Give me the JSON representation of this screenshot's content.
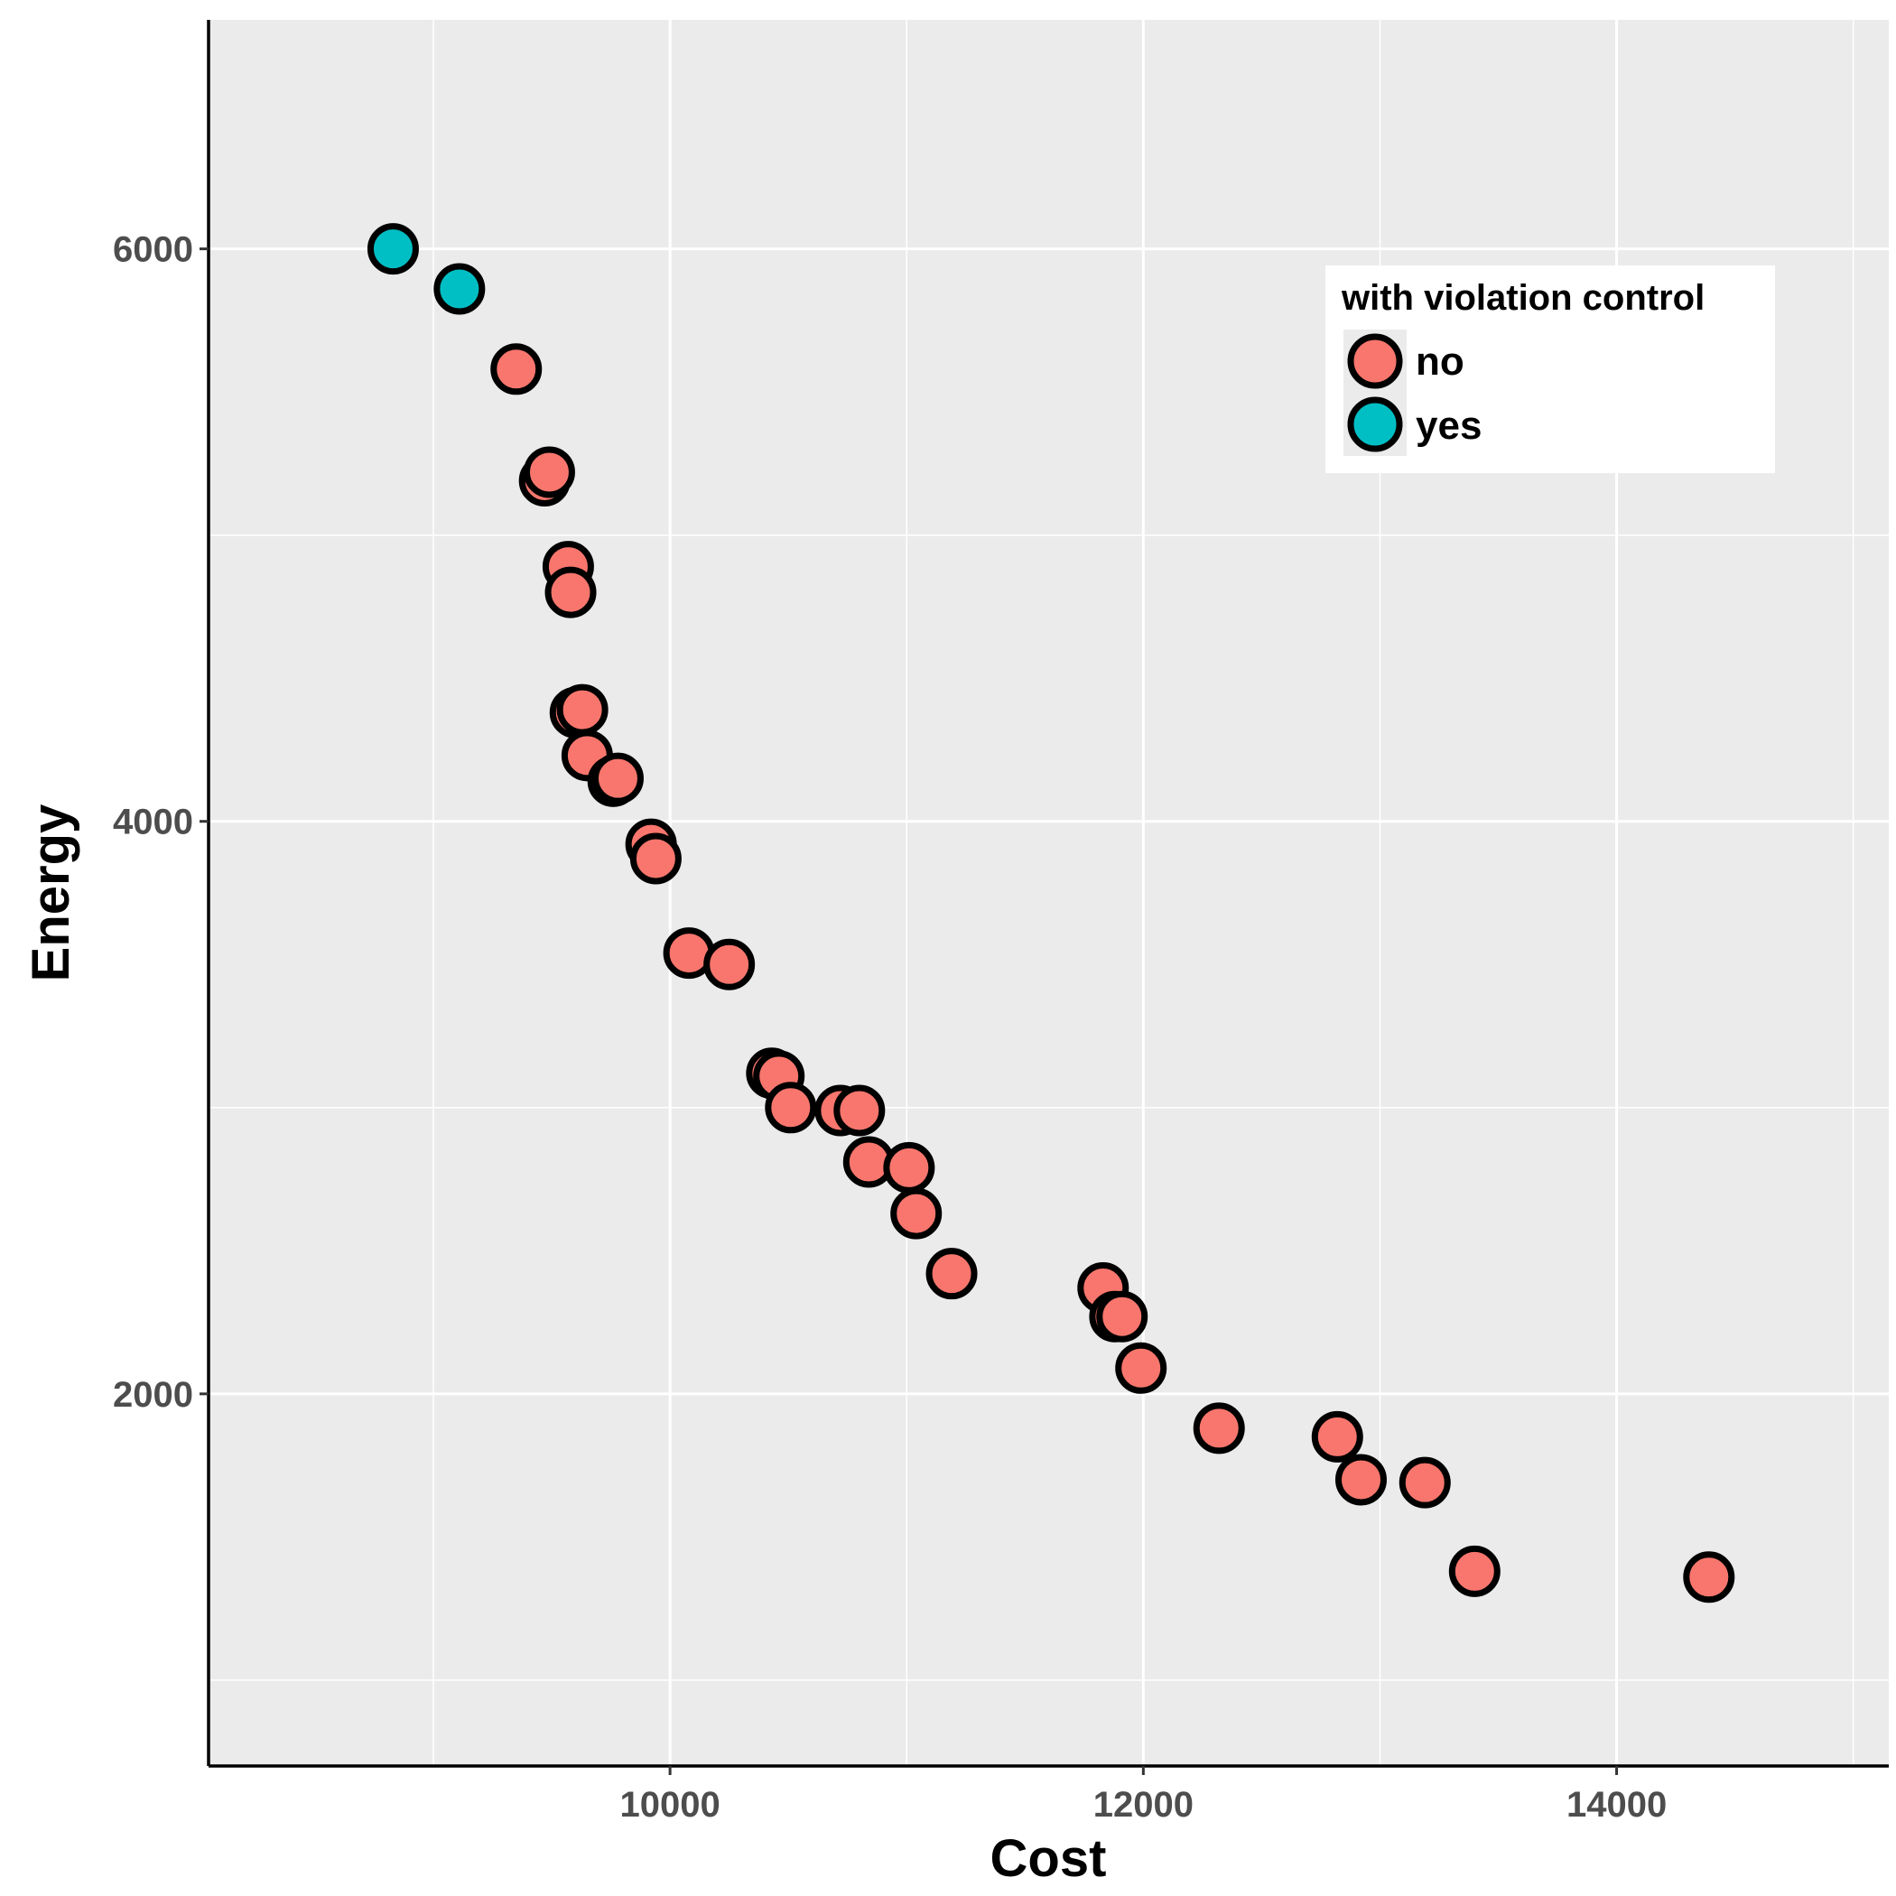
{
  "chart_data": {
    "type": "scatter",
    "xlabel": "Cost",
    "ylabel": "Energy",
    "xlim": [
      8050,
      15150
    ],
    "ylim": [
      700,
      6800
    ],
    "x_ticks": [
      10000,
      12000,
      14000
    ],
    "y_ticks": [
      2000,
      4000,
      6000
    ],
    "x_minor_gridlines": [
      9000,
      11000,
      13000,
      15000
    ],
    "y_minor_gridlines": [
      1000,
      3000,
      5000
    ],
    "grid": true,
    "legend": {
      "title": "with violation control",
      "position": "top-right",
      "entries": [
        {
          "label": "no",
          "color": "#F8766D"
        },
        {
          "label": "yes",
          "color": "#00BFC4"
        }
      ]
    },
    "series": [
      {
        "name": "no",
        "color": "#F8766D",
        "points": [
          [
            9350,
            5580
          ],
          [
            9470,
            5190
          ],
          [
            9490,
            5220
          ],
          [
            9570,
            4890
          ],
          [
            9580,
            4800
          ],
          [
            9600,
            4380
          ],
          [
            9630,
            4390
          ],
          [
            9650,
            4230
          ],
          [
            9760,
            4140
          ],
          [
            9780,
            4150
          ],
          [
            9920,
            3920
          ],
          [
            9940,
            3870
          ],
          [
            10080,
            3540
          ],
          [
            10250,
            3500
          ],
          [
            10430,
            3120
          ],
          [
            10460,
            3110
          ],
          [
            10510,
            3000
          ],
          [
            10720,
            2990
          ],
          [
            10800,
            2990
          ],
          [
            10840,
            2810
          ],
          [
            11010,
            2790
          ],
          [
            11040,
            2630
          ],
          [
            11190,
            2420
          ],
          [
            11830,
            2370
          ],
          [
            11880,
            2270
          ],
          [
            11910,
            2270
          ],
          [
            11990,
            2090
          ],
          [
            12320,
            1880
          ],
          [
            12820,
            1850
          ],
          [
            12920,
            1700
          ],
          [
            13190,
            1690
          ],
          [
            13400,
            1380
          ],
          [
            14390,
            1360
          ]
        ]
      },
      {
        "name": "yes",
        "color": "#00BFC4",
        "points": [
          [
            8830,
            6000
          ],
          [
            9110,
            5860
          ]
        ]
      }
    ]
  }
}
